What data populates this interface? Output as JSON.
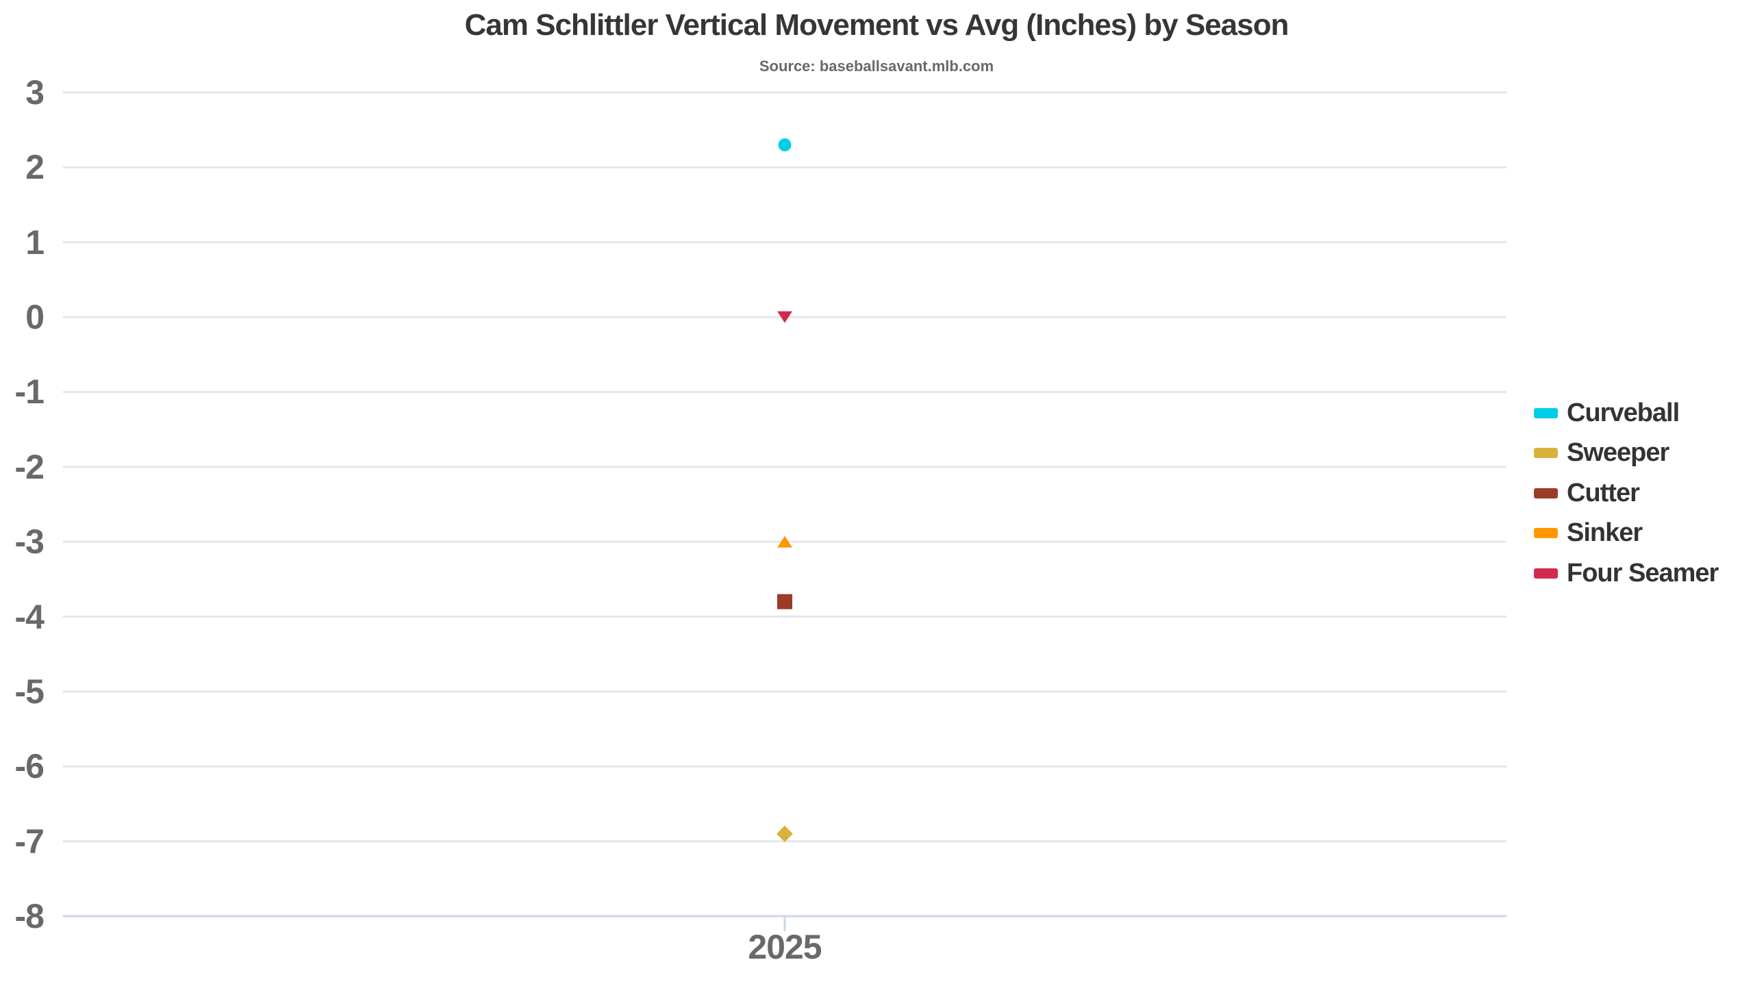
{
  "chart_data": {
    "type": "scatter",
    "title": "Cam Schlittler Vertical Movement vs Avg (Inches) by Season",
    "subtitle": "Source: baseballsavant.mlb.com",
    "xlabel": "",
    "ylabel": "",
    "x_categories": [
      "2025"
    ],
    "ylim": [
      -8,
      3
    ],
    "y_ticks": [
      3,
      2,
      1,
      0,
      -1,
      -2,
      -3,
      -4,
      -5,
      -6,
      -7,
      -8
    ],
    "grid": true,
    "legend_position": "right",
    "series": [
      {
        "name": "Curveball",
        "marker": "circle",
        "color": "#00CEE8",
        "x": [
          "2025"
        ],
        "values": [
          2.3
        ]
      },
      {
        "name": "Sweeper",
        "marker": "diamond",
        "color": "#D8B23C",
        "x": [
          "2025"
        ],
        "values": [
          -6.9
        ]
      },
      {
        "name": "Cutter",
        "marker": "square",
        "color": "#9C3B28",
        "x": [
          "2025"
        ],
        "values": [
          -3.8
        ]
      },
      {
        "name": "Sinker",
        "marker": "triangle-up",
        "color": "#FF9800",
        "x": [
          "2025"
        ],
        "values": [
          -3.0
        ]
      },
      {
        "name": "Four Seamer",
        "marker": "triangle-down",
        "color": "#D22B4D",
        "x": [
          "2025"
        ],
        "values": [
          0.0
        ]
      }
    ],
    "colors": {
      "gridline": "#E6E6E6",
      "axis_line": "#CCD6EB",
      "axis_label": "#696969",
      "title": "#363636",
      "subtitle": "#696969",
      "legend_text": "#333333"
    }
  }
}
